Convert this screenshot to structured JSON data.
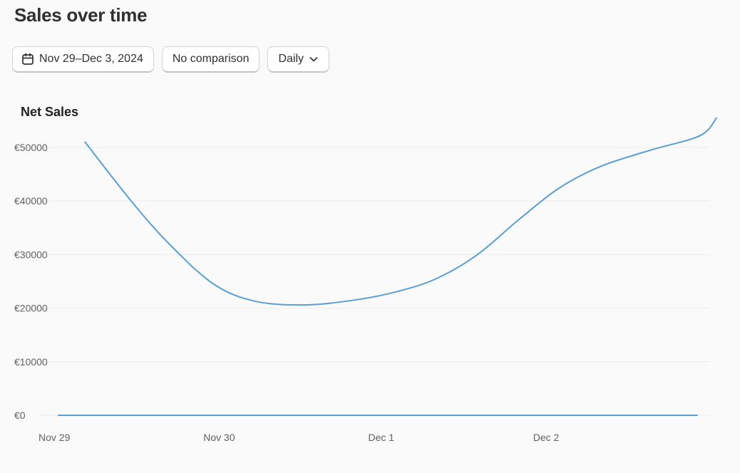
{
  "page": {
    "title": "Sales over time"
  },
  "toolbar": {
    "date_range_label": "Nov 29–Dec 3, 2024",
    "comparison_label": "No comparison",
    "granularity_label": "Daily"
  },
  "colors": {
    "series_line": "#5a9fd4",
    "grid": "#ececec",
    "axis_text": "#616161"
  },
  "icons": {
    "date_range": "calendar-icon",
    "granularity": "chevron-down-icon"
  },
  "chart_data": {
    "type": "line",
    "title": "Net Sales",
    "xlabel": "",
    "ylabel": "",
    "x_ticks": [
      {
        "value": 0,
        "label": "Nov 29"
      },
      {
        "value": 1,
        "label": "Nov 30"
      },
      {
        "value": 2,
        "label": "Dec 1"
      },
      {
        "value": 3,
        "label": "Dec 2"
      }
    ],
    "xlim": [
      0,
      4
    ],
    "y_ticks": [
      {
        "value": 0,
        "label": "€0"
      },
      {
        "value": 10000,
        "label": "€10000"
      },
      {
        "value": 20000,
        "label": "€20000"
      },
      {
        "value": 30000,
        "label": "€30000"
      },
      {
        "value": 40000,
        "label": "€40000"
      },
      {
        "value": 50000,
        "label": "€50000"
      }
    ],
    "ylim": [
      0,
      50000
    ],
    "grid": true,
    "series": [
      {
        "values": [
          [
            0.17,
            51000
          ],
          [
            0.45,
            40000
          ],
          [
            0.68,
            32000
          ],
          [
            0.95,
            24500
          ],
          [
            1.2,
            21300
          ],
          [
            1.5,
            20600
          ],
          [
            1.8,
            21500
          ],
          [
            2.05,
            23000
          ],
          [
            2.3,
            25500
          ],
          [
            2.55,
            30000
          ],
          [
            2.8,
            36500
          ],
          [
            3.05,
            42500
          ],
          [
            3.3,
            46500
          ],
          [
            3.6,
            49500
          ],
          [
            3.9,
            52200
          ],
          [
            4.0,
            55500
          ]
        ]
      },
      {
        "values": [
          [
            0,
            0
          ],
          [
            4,
            0
          ]
        ]
      }
    ]
  }
}
